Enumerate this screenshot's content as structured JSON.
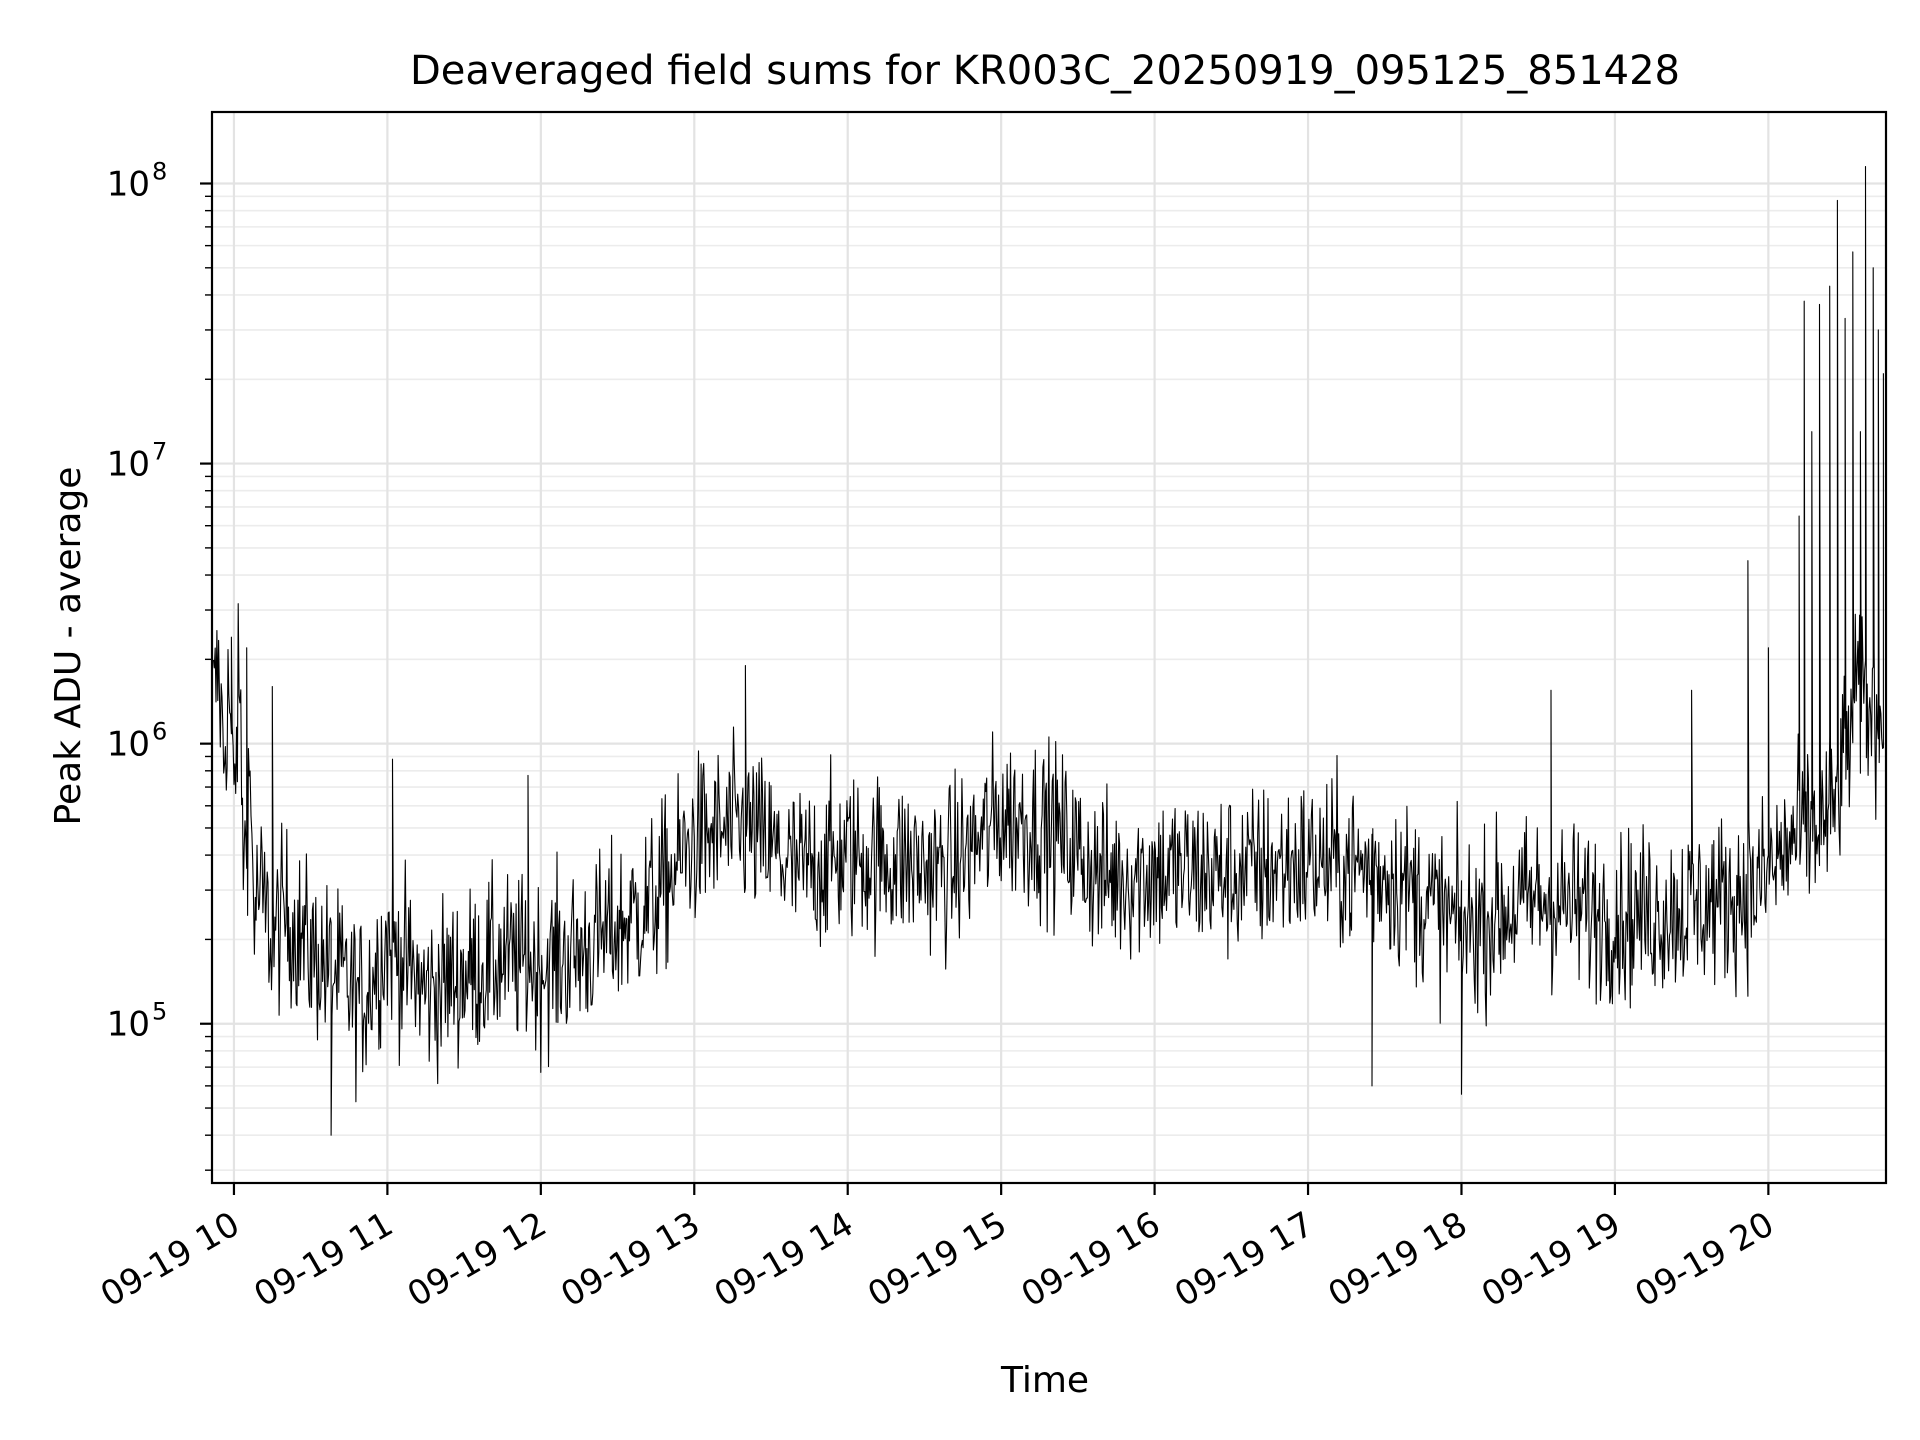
{
  "chart_data": {
    "type": "line",
    "title": "Deaveraged field sums for KR003C_20250919_095125_851428",
    "xlabel": "Time",
    "ylabel": "Peak ADU - average",
    "x_scale": "time",
    "y_scale": "log",
    "xlim": [
      "2025-09-19T09:51:25",
      "2025-09-19T20:46:00"
    ],
    "ylim": [
      27000,
      180000000
    ],
    "grid": true,
    "grid_minor": true,
    "line_color": "#000000",
    "x_ticks": [
      {
        "label": "09-19 10",
        "value": "2025-09-19T10:00:00"
      },
      {
        "label": "09-19 11",
        "value": "2025-09-19T11:00:00"
      },
      {
        "label": "09-19 12",
        "value": "2025-09-19T12:00:00"
      },
      {
        "label": "09-19 13",
        "value": "2025-09-19T13:00:00"
      },
      {
        "label": "09-19 14",
        "value": "2025-09-19T14:00:00"
      },
      {
        "label": "09-19 15",
        "value": "2025-09-19T15:00:00"
      },
      {
        "label": "09-19 16",
        "value": "2025-09-19T16:00:00"
      },
      {
        "label": "09-19 17",
        "value": "2025-09-19T17:00:00"
      },
      {
        "label": "09-19 18",
        "value": "2025-09-19T18:00:00"
      },
      {
        "label": "09-19 19",
        "value": "2025-09-19T19:00:00"
      },
      {
        "label": "09-19 20",
        "value": "2025-09-19T20:00:00"
      }
    ],
    "y_ticks": [
      {
        "base": "10",
        "exp": "5",
        "value": 100000
      },
      {
        "base": "10",
        "exp": "6",
        "value": 1000000
      },
      {
        "base": "10",
        "exp": "7",
        "value": 10000000
      },
      {
        "base": "10",
        "exp": "8",
        "value": 100000000
      }
    ],
    "series": [
      {
        "points": [
          [
            "2025-09-19T09:52:00",
            1400000
          ],
          [
            "2025-09-19T09:54:00",
            1800000
          ],
          [
            "2025-09-19T09:56:00",
            900000
          ],
          [
            "2025-09-19T09:58:00",
            1600000
          ],
          [
            "2025-09-19T10:00:00",
            600000
          ],
          [
            "2025-09-19T10:02:00",
            1700000
          ],
          [
            "2025-09-19T10:04:00",
            350000
          ],
          [
            "2025-09-19T10:06:00",
            800000
          ],
          [
            "2025-09-19T10:08:00",
            250000
          ],
          [
            "2025-09-19T10:10:00",
            300000
          ],
          [
            "2025-09-19T10:15:00",
            200000
          ],
          [
            "2025-09-19T10:20:00",
            250000
          ],
          [
            "2025-09-19T10:30:00",
            180000
          ],
          [
            "2025-09-19T10:40:00",
            150000
          ],
          [
            "2025-09-19T10:50:00",
            120000
          ],
          [
            "2025-09-19T11:00:00",
            200000
          ],
          [
            "2025-09-19T11:15:00",
            130000
          ],
          [
            "2025-09-19T11:30:00",
            150000
          ],
          [
            "2025-09-19T11:45:00",
            170000
          ],
          [
            "2025-09-19T12:00:00",
            160000
          ],
          [
            "2025-09-19T12:15:00",
            180000
          ],
          [
            "2025-09-19T12:30:00",
            220000
          ],
          [
            "2025-09-19T12:45:00",
            280000
          ],
          [
            "2025-09-19T13:00:00",
            450000
          ],
          [
            "2025-09-19T13:20:00",
            500000
          ],
          [
            "2025-09-19T13:40:00",
            350000
          ],
          [
            "2025-09-19T14:00:00",
            400000
          ],
          [
            "2025-09-19T14:20:00",
            380000
          ],
          [
            "2025-09-19T14:40:00",
            350000
          ],
          [
            "2025-09-19T15:00:00",
            550000
          ],
          [
            "2025-09-19T15:20:00",
            500000
          ],
          [
            "2025-09-19T15:40:00",
            330000
          ],
          [
            "2025-09-19T16:00:00",
            350000
          ],
          [
            "2025-09-19T16:30:00",
            340000
          ],
          [
            "2025-09-19T17:00:00",
            380000
          ],
          [
            "2025-09-19T17:30:00",
            350000
          ],
          [
            "2025-09-19T18:00:00",
            220000
          ],
          [
            "2025-09-19T18:30:00",
            280000
          ],
          [
            "2025-09-19T19:00:00",
            240000
          ],
          [
            "2025-09-19T19:30:00",
            260000
          ],
          [
            "2025-09-19T19:55:00",
            300000
          ],
          [
            "2025-09-19T20:10:00",
            450000
          ],
          [
            "2025-09-19T20:25:00",
            550000
          ],
          [
            "2025-09-19T20:35:00",
            1500000
          ],
          [
            "2025-09-19T20:45:00",
            1200000
          ]
        ],
        "spikes": [
          [
            "2025-09-19T09:59:00",
            2400000
          ],
          [
            "2025-09-19T10:05:00",
            2200000
          ],
          [
            "2025-09-19T10:15:00",
            1600000
          ],
          [
            "2025-09-19T10:38:00",
            40000
          ],
          [
            "2025-09-19T11:02:00",
            880000
          ],
          [
            "2025-09-19T11:55:00",
            770000
          ],
          [
            "2025-09-19T13:20:00",
            1900000
          ],
          [
            "2025-09-19T17:25:00",
            60000
          ],
          [
            "2025-09-19T18:00:00",
            56000
          ],
          [
            "2025-09-19T18:35:00",
            1550000
          ],
          [
            "2025-09-19T19:30:00",
            1550000
          ],
          [
            "2025-09-19T19:52:00",
            4500000
          ],
          [
            "2025-09-19T20:00:00",
            2200000
          ],
          [
            "2025-09-19T20:12:00",
            6500000
          ],
          [
            "2025-09-19T20:14:00",
            38000000
          ],
          [
            "2025-09-19T20:17:00",
            13000000
          ],
          [
            "2025-09-19T20:20:00",
            37000000
          ],
          [
            "2025-09-19T20:24:00",
            43000000
          ],
          [
            "2025-09-19T20:27:00",
            87000000
          ],
          [
            "2025-09-19T20:30:00",
            33000000
          ],
          [
            "2025-09-19T20:33:00",
            57000000
          ],
          [
            "2025-09-19T20:36:00",
            13000000
          ],
          [
            "2025-09-19T20:38:00",
            115000000
          ],
          [
            "2025-09-19T20:41:00",
            50000000
          ],
          [
            "2025-09-19T20:43:00",
            30000000
          ],
          [
            "2025-09-19T20:45:00",
            21000000
          ]
        ]
      }
    ]
  }
}
